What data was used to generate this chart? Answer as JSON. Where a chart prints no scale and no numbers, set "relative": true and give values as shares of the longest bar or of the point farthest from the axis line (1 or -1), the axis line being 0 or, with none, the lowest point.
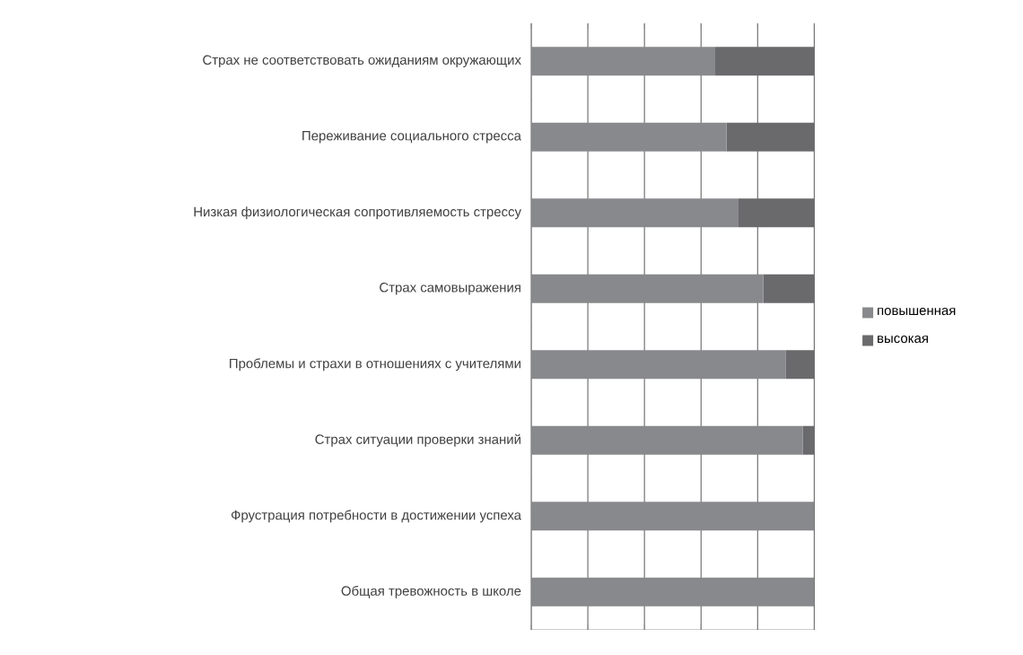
{
  "chart_data": {
    "type": "bar",
    "orientation": "horizontal",
    "stacked": true,
    "relative": true,
    "grid": "x",
    "legend": "right",
    "categories": [
      "Страх не соответствовать ожиданиям окружающих",
      "Переживание социального стресса",
      "Низкая физиологическая сопротивляемость стрессу",
      "Страх самовыражения",
      "Проблемы и страхи в отношениях с учителями",
      "Страх ситуации проверки знаний",
      "Фрустрация потребности в достижении успеха",
      "Общая тревожность в школе"
    ],
    "series": [
      {
        "name": "повышенная",
        "color": "#88898c",
        "values": [
          0.65,
          0.69,
          0.73,
          0.82,
          0.9,
          0.96,
          1,
          1
        ]
      },
      {
        "name": "высокая",
        "color": "#6a6a6c",
        "values": [
          0.35,
          0.31,
          0.27,
          0.18,
          0.1,
          0.04,
          0,
          0
        ]
      }
    ]
  }
}
